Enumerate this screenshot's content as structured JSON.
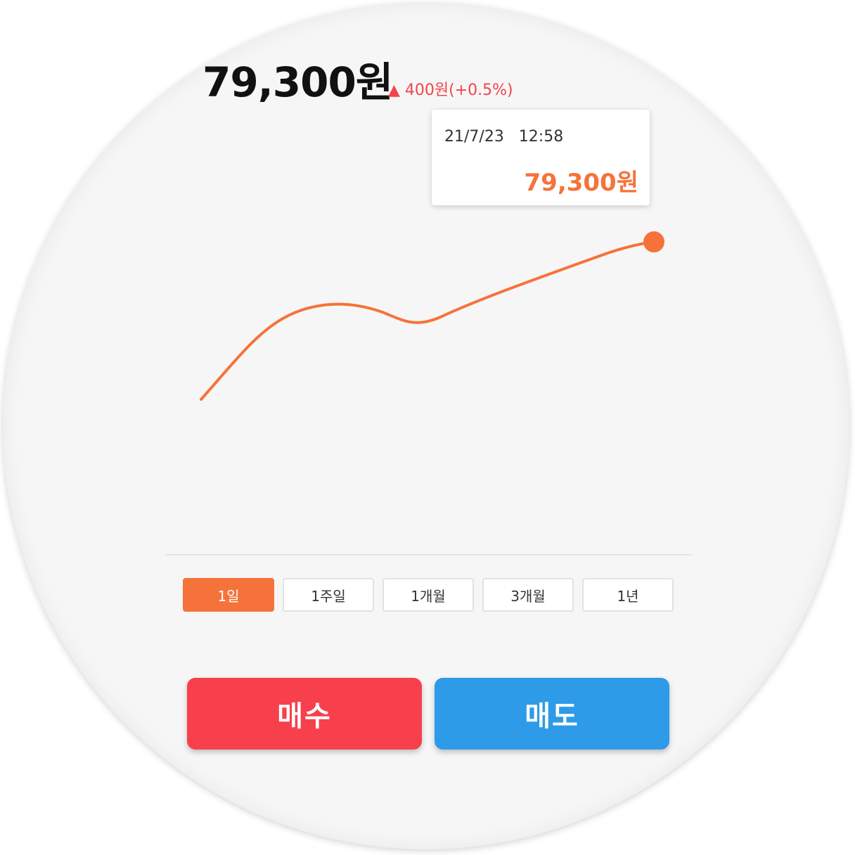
{
  "stock": {
    "title_fragment": "…",
    "price": "79,300원",
    "change": "▲ 400원(+0.5%)"
  },
  "tooltip": {
    "datetime": "21/7/23 12:58",
    "value": "79,300원"
  },
  "ranges": [
    {
      "label": "1일",
      "active": true
    },
    {
      "label": "1주일",
      "active": false
    },
    {
      "label": "1개월",
      "active": false
    },
    {
      "label": "3개월",
      "active": false
    },
    {
      "label": "1년",
      "active": false
    }
  ],
  "actions": {
    "buy_label": "매수",
    "sell_label": "매도"
  },
  "colors": {
    "line": "#f5733a",
    "buy": "#f7404b",
    "sell": "#2d9be8",
    "rise": "#f2444c"
  }
}
